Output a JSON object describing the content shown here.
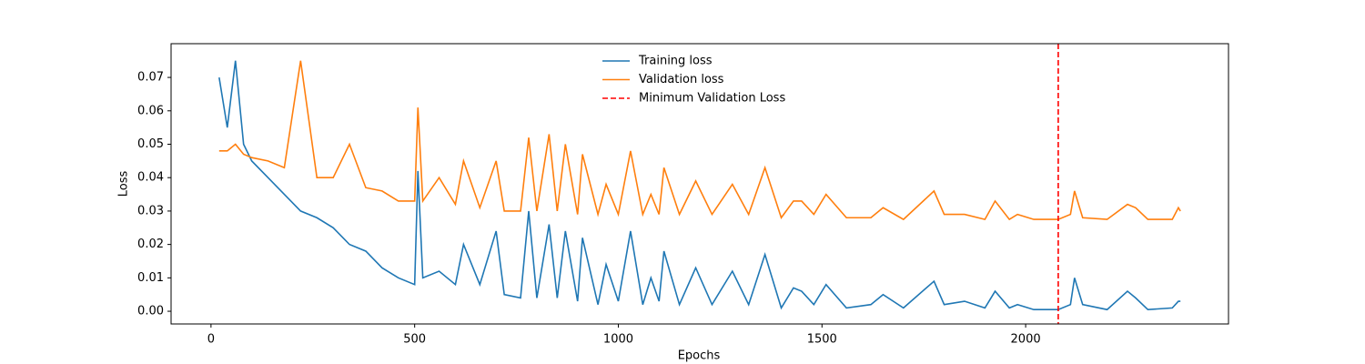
{
  "chart_data": {
    "type": "line",
    "xlabel": "Epochs",
    "ylabel": "Loss",
    "x": [
      20,
      40,
      60,
      80,
      100,
      140,
      180,
      220,
      260,
      300,
      340,
      380,
      420,
      460,
      500,
      508,
      520,
      560,
      600,
      620,
      660,
      700,
      720,
      760,
      780,
      800,
      830,
      850,
      870,
      900,
      912,
      950,
      970,
      1000,
      1030,
      1060,
      1080,
      1100,
      1112,
      1150,
      1190,
      1230,
      1280,
      1320,
      1360,
      1400,
      1430,
      1450,
      1480,
      1510,
      1560,
      1620,
      1650,
      1700,
      1775,
      1800,
      1850,
      1900,
      1925,
      1960,
      1980,
      2020,
      2080,
      2110,
      2120,
      2140,
      2200,
      2250,
      2270,
      2300,
      2360,
      2375,
      2380
    ],
    "series": [
      {
        "name": "Training loss",
        "color": "#1f77b4",
        "values": [
          0.07,
          0.055,
          0.075,
          0.05,
          0.045,
          0.04,
          0.035,
          0.03,
          0.028,
          0.025,
          0.02,
          0.018,
          0.013,
          0.01,
          0.008,
          0.042,
          0.01,
          0.012,
          0.008,
          0.02,
          0.008,
          0.024,
          0.005,
          0.004,
          0.03,
          0.004,
          0.026,
          0.004,
          0.024,
          0.003,
          0.022,
          0.002,
          0.014,
          0.003,
          0.024,
          0.002,
          0.01,
          0.003,
          0.018,
          0.002,
          0.013,
          0.002,
          0.012,
          0.002,
          0.017,
          0.001,
          0.007,
          0.006,
          0.002,
          0.008,
          0.001,
          0.002,
          0.005,
          0.001,
          0.009,
          0.002,
          0.003,
          0.001,
          0.006,
          0.001,
          0.002,
          0.0005,
          0.0005,
          0.002,
          0.01,
          0.002,
          0.0005,
          0.006,
          0.004,
          0.0005,
          0.001,
          0.003,
          0.003
        ]
      },
      {
        "name": "Validation loss",
        "color": "#ff7f0e",
        "values": [
          0.048,
          0.048,
          0.05,
          0.047,
          0.046,
          0.045,
          0.043,
          0.075,
          0.04,
          0.04,
          0.05,
          0.037,
          0.036,
          0.033,
          0.033,
          0.061,
          0.033,
          0.04,
          0.032,
          0.045,
          0.031,
          0.045,
          0.03,
          0.03,
          0.052,
          0.03,
          0.053,
          0.03,
          0.05,
          0.029,
          0.047,
          0.029,
          0.038,
          0.029,
          0.048,
          0.029,
          0.035,
          0.029,
          0.043,
          0.029,
          0.039,
          0.029,
          0.038,
          0.029,
          0.043,
          0.028,
          0.033,
          0.033,
          0.029,
          0.035,
          0.028,
          0.028,
          0.031,
          0.0275,
          0.036,
          0.029,
          0.029,
          0.0275,
          0.033,
          0.0275,
          0.029,
          0.0275,
          0.0275,
          0.029,
          0.036,
          0.028,
          0.0275,
          0.032,
          0.031,
          0.0275,
          0.0275,
          0.031,
          0.03
        ]
      }
    ],
    "vline": {
      "name": "Minimum Validation Loss",
      "x": 2080,
      "color": "#ff0000",
      "dashed": true
    },
    "xlim": [
      -98,
      2498
    ],
    "xticks": [
      0,
      500,
      1000,
      1500,
      2000
    ],
    "ylim": [
      -0.0038,
      0.0801
    ],
    "yticks": [
      {
        "value": 0,
        "label": "0.00"
      },
      {
        "value": 0.01,
        "label": "0.01"
      },
      {
        "value": 0.02,
        "label": "0.02"
      },
      {
        "value": 0.03,
        "label": "0.03"
      },
      {
        "value": 0.04,
        "label": "0.04"
      },
      {
        "value": 0.05,
        "label": "0.05"
      },
      {
        "value": 0.06,
        "label": "0.06"
      },
      {
        "value": 0.07,
        "label": "0.07"
      }
    ],
    "legend": "upper center"
  }
}
